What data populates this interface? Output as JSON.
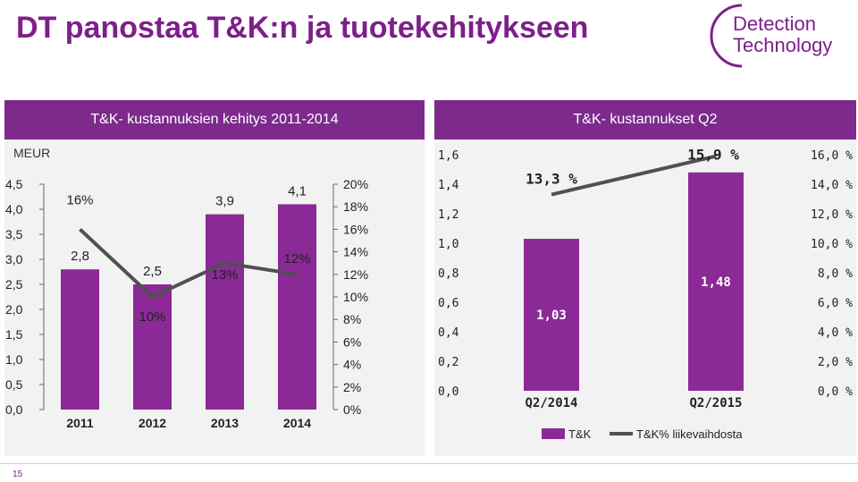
{
  "slide": {
    "title": "DT panostaa T&K:n ja tuotekehitykseen",
    "page_number": "15",
    "logo_text_1": "Detection",
    "logo_text_2": "Technology"
  },
  "colors": {
    "purple": "#8b2a96",
    "header": "#7d2a8c",
    "line": "#505050",
    "title": "#7d1f8a"
  },
  "chart_data": [
    {
      "type": "bar",
      "title": "T&K- kustannuksien kehitys 2011-2014",
      "unit_label": "MEUR",
      "categories": [
        "2011",
        "2012",
        "2013",
        "2014"
      ],
      "series": [
        {
          "kind": "bar",
          "values": [
            2.8,
            2.5,
            3.9,
            4.1
          ],
          "labels": [
            "2,8",
            "2,5",
            "3,9",
            "4,1"
          ]
        },
        {
          "kind": "line",
          "values": [
            16,
            10,
            13,
            12
          ],
          "labels": [
            "16%",
            "10%",
            "13%",
            "12%"
          ]
        }
      ],
      "ylim": [
        0,
        4.5
      ],
      "y_ticks": [
        "0,0",
        "0,5",
        "1,0",
        "1,5",
        "2,0",
        "2,5",
        "3,0",
        "3,5",
        "4,0",
        "4,5"
      ],
      "y2lim": [
        0,
        20
      ],
      "y2_ticks": [
        "0%",
        "2%",
        "4%",
        "6%",
        "8%",
        "10%",
        "12%",
        "14%",
        "16%",
        "18%",
        "20%"
      ]
    },
    {
      "type": "bar",
      "title": "T&K- kustannukset Q2",
      "categories": [
        "Q2/2014",
        "Q2/2015"
      ],
      "series": [
        {
          "name": "T&K",
          "kind": "bar",
          "values": [
            1.03,
            1.48
          ],
          "labels": [
            "1,03",
            "1,48"
          ]
        },
        {
          "name": "T&K% liikevaihdosta",
          "kind": "line",
          "values": [
            13.3,
            15.9
          ],
          "labels": [
            "13,3 %",
            "15,9 %"
          ]
        }
      ],
      "ylim": [
        0,
        1.6
      ],
      "y_ticks": [
        "0,0",
        "0,2",
        "0,4",
        "0,6",
        "0,8",
        "1,0",
        "1,2",
        "1,4",
        "1,6"
      ],
      "y2lim": [
        0,
        16
      ],
      "y2_ticks": [
        "0,0 %",
        "2,0 %",
        "4,0 %",
        "6,0 %",
        "8,0 %",
        "10,0 %",
        "12,0 %",
        "14,0 %",
        "16,0 %"
      ],
      "legend": [
        "T&K",
        "T&K% liikevaihdosta"
      ]
    }
  ]
}
